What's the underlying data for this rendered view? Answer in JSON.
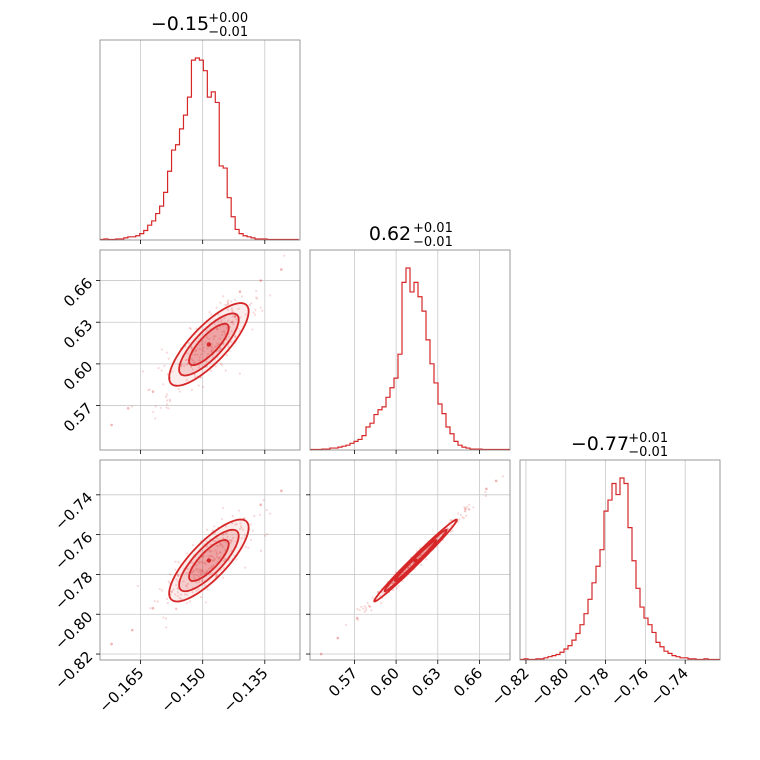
{
  "colors": {
    "primary": "#d62728",
    "fill_light": "#f7c9ca",
    "grid": "#c8c8c8",
    "frame": "#808080"
  },
  "chart_data": {
    "type": "corner",
    "panels": [
      {
        "id": "p00",
        "kind": "hist",
        "title": {
          "main": "−0.15",
          "sup": "+0.00",
          "sub": "−0.01"
        },
        "xlim": [
          -0.1748,
          -0.1265
        ],
        "grid_x": [
          -0.165,
          -0.15,
          -0.135
        ],
        "bins": {
          "start": -0.1748,
          "width": 0.00096,
          "counts": [
            0.5,
            1,
            0.5,
            0.5,
            1,
            1,
            2,
            3,
            3,
            4,
            6,
            9,
            14,
            18,
            25,
            32,
            45,
            65,
            85,
            90,
            105,
            118,
            135,
            170,
            172,
            170,
            160,
            135,
            140,
            130,
            70,
            68,
            40,
            22,
            10,
            6,
            4,
            3,
            2,
            1,
            1,
            1,
            0.5,
            0.5,
            0.5,
            0.5,
            0.5,
            0.5,
            0.5,
            0.5
          ]
        }
      },
      {
        "id": "p10",
        "kind": "scatter2d",
        "xlim": [
          -0.1748,
          -0.1265
        ],
        "ylim": [
          0.538,
          0.682
        ],
        "grid_x": [
          -0.165,
          -0.15,
          -0.135
        ],
        "grid_y": [
          0.57,
          0.6,
          0.63,
          0.66
        ],
        "yticklabels": [
          "0.57",
          "0.60",
          "0.63",
          "0.66"
        ],
        "corr": 0.8,
        "center": [
          -0.1485,
          0.614
        ],
        "sigma": [
          0.0048,
          0.0149
        ],
        "contour_levels": [
          1,
          1.5,
          2
        ],
        "tail_points": [
          [
            -0.158,
            0.59
          ],
          [
            -0.162,
            0.58
          ],
          [
            -0.168,
            0.568
          ],
          [
            -0.172,
            0.556
          ],
          [
            -0.131,
            0.668
          ],
          [
            -0.136,
            0.66
          ],
          [
            -0.141,
            0.652
          ]
        ]
      },
      {
        "id": "p11",
        "kind": "hist",
        "title": {
          "main": "0.62",
          "sup": "+0.01",
          "sub": "−0.01"
        },
        "xlim": [
          0.538,
          0.682
        ],
        "grid_x": [
          0.57,
          0.6,
          0.63,
          0.66
        ],
        "bins": {
          "start": 0.538,
          "width": 0.00288,
          "counts": [
            0.5,
            0.5,
            0.5,
            1,
            1,
            2,
            2,
            3,
            4,
            5,
            7,
            9,
            11,
            15,
            24,
            28,
            37,
            42,
            45,
            55,
            65,
            75,
            100,
            175,
            190,
            165,
            175,
            160,
            145,
            115,
            90,
            70,
            48,
            38,
            24,
            17,
            9,
            5,
            3,
            2,
            1,
            1,
            1,
            0.5,
            0.5,
            0.5,
            0.5,
            0.5,
            0.5,
            0.5
          ]
        }
      },
      {
        "id": "p20",
        "kind": "scatter2d",
        "xlim": [
          -0.1748,
          -0.1265
        ],
        "ylim": [
          -0.823,
          -0.7225
        ],
        "grid_x": [
          -0.165,
          -0.15,
          -0.135
        ],
        "grid_y": [
          -0.82,
          -0.8,
          -0.78,
          -0.76,
          -0.74
        ],
        "yticklabels": [
          "−0.82",
          "−0.80",
          "−0.78",
          "−0.76",
          "−0.74"
        ],
        "xticklabels": [
          "−0.165",
          "−0.150",
          "−0.135"
        ],
        "corr": 0.8,
        "center": [
          -0.1485,
          -0.773
        ],
        "sigma": [
          0.0048,
          0.0103
        ],
        "contour_levels": [
          1,
          1.5,
          2
        ],
        "tail_points": [
          [
            -0.158,
            -0.79
          ],
          [
            -0.162,
            -0.797
          ],
          [
            -0.167,
            -0.808
          ],
          [
            -0.172,
            -0.815
          ],
          [
            -0.131,
            -0.738
          ],
          [
            -0.136,
            -0.745
          ],
          [
            -0.14,
            -0.752
          ]
        ]
      },
      {
        "id": "p21",
        "kind": "scatter2d",
        "xlim": [
          0.538,
          0.682
        ],
        "ylim": [
          -0.823,
          -0.7225
        ],
        "grid_x": [
          0.57,
          0.6,
          0.63,
          0.66
        ],
        "grid_y": [
          -0.82,
          -0.8,
          -0.78,
          -0.76,
          -0.74
        ],
        "xticklabels": [
          "0.57",
          "0.60",
          "0.63",
          "0.66"
        ],
        "corr": 0.99,
        "center": [
          0.614,
          -0.773
        ],
        "sigma": [
          0.0149,
          0.0103
        ],
        "contour_levels": [
          1,
          1.5,
          2
        ],
        "tail_points": [
          [
            0.546,
            -0.82
          ],
          [
            0.558,
            -0.812
          ],
          [
            0.572,
            -0.802
          ],
          [
            0.585,
            -0.793
          ],
          [
            0.65,
            -0.747
          ],
          [
            0.665,
            -0.737
          ],
          [
            0.672,
            -0.733
          ]
        ]
      },
      {
        "id": "p22",
        "kind": "hist",
        "title": {
          "main": "−0.77",
          "sup": "+0.01",
          "sub": "−0.01"
        },
        "xlim": [
          -0.823,
          -0.7225
        ],
        "grid_x": [
          -0.82,
          -0.8,
          -0.78,
          -0.76,
          -0.74
        ],
        "xticklabels": [
          "−0.82",
          "−0.80",
          "−0.78",
          "−0.76",
          "−0.74"
        ],
        "bins": {
          "start": -0.823,
          "width": 0.00201,
          "counts": [
            0.5,
            1,
            0.5,
            0.5,
            1,
            1,
            2,
            3,
            4,
            5,
            7,
            10,
            13,
            18,
            24,
            32,
            42,
            55,
            70,
            85,
            100,
            135,
            145,
            160,
            150,
            165,
            160,
            120,
            90,
            65,
            48,
            38,
            32,
            25,
            16,
            12,
            8,
            6,
            4,
            3,
            2,
            2,
            1,
            1,
            0.5,
            0.5,
            1,
            0.5,
            0.5,
            0.5
          ]
        }
      }
    ]
  }
}
